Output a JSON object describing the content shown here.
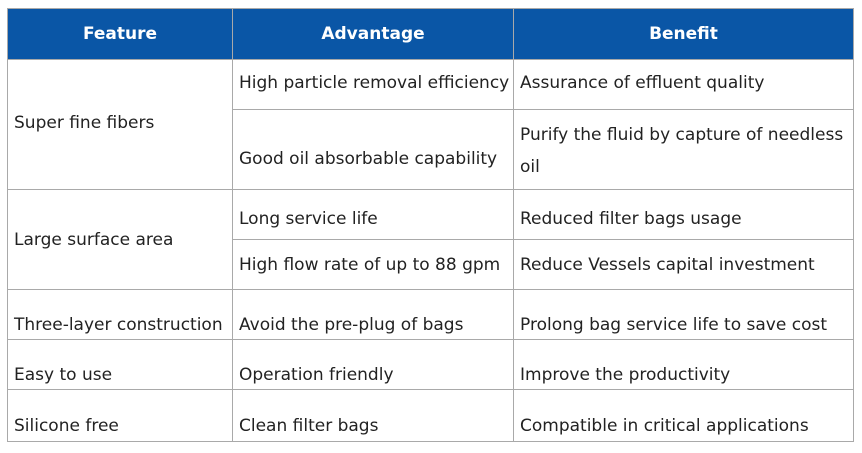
{
  "table": {
    "headers": [
      "Feature",
      "Advantage",
      "Benefit"
    ],
    "groups": [
      {
        "feature": "Super fine fibers",
        "rows": [
          {
            "advantage": "High particle removal efficiency",
            "benefit": "Assurance of effluent quality"
          },
          {
            "advantage": "Good oil absorbable capability",
            "benefit": "Purify the fluid by capture of needless oil"
          }
        ]
      },
      {
        "feature": "Large surface area",
        "rows": [
          {
            "advantage": "Long service life",
            "benefit": "Reduced filter bags usage"
          },
          {
            "advantage": "High flow rate of up to 88 gpm",
            "benefit": "Reduce Vessels capital investment"
          }
        ]
      },
      {
        "feature": "Three-layer construction",
        "rows": [
          {
            "advantage": "Avoid the pre-plug of bags",
            "benefit": "Prolong bag service life to save cost"
          }
        ]
      },
      {
        "feature": "Easy to use",
        "rows": [
          {
            "advantage": "Operation friendly",
            "benefit": "Improve the productivity"
          }
        ]
      },
      {
        "feature": "Silicone free",
        "rows": [
          {
            "advantage": "Clean filter bags",
            "benefit": "Compatible in critical applications"
          }
        ]
      }
    ]
  },
  "colors": {
    "header_background": "#0a56a6",
    "header_text": "#ffffff",
    "border": "#a9a9a9",
    "body_text": "#222222"
  }
}
